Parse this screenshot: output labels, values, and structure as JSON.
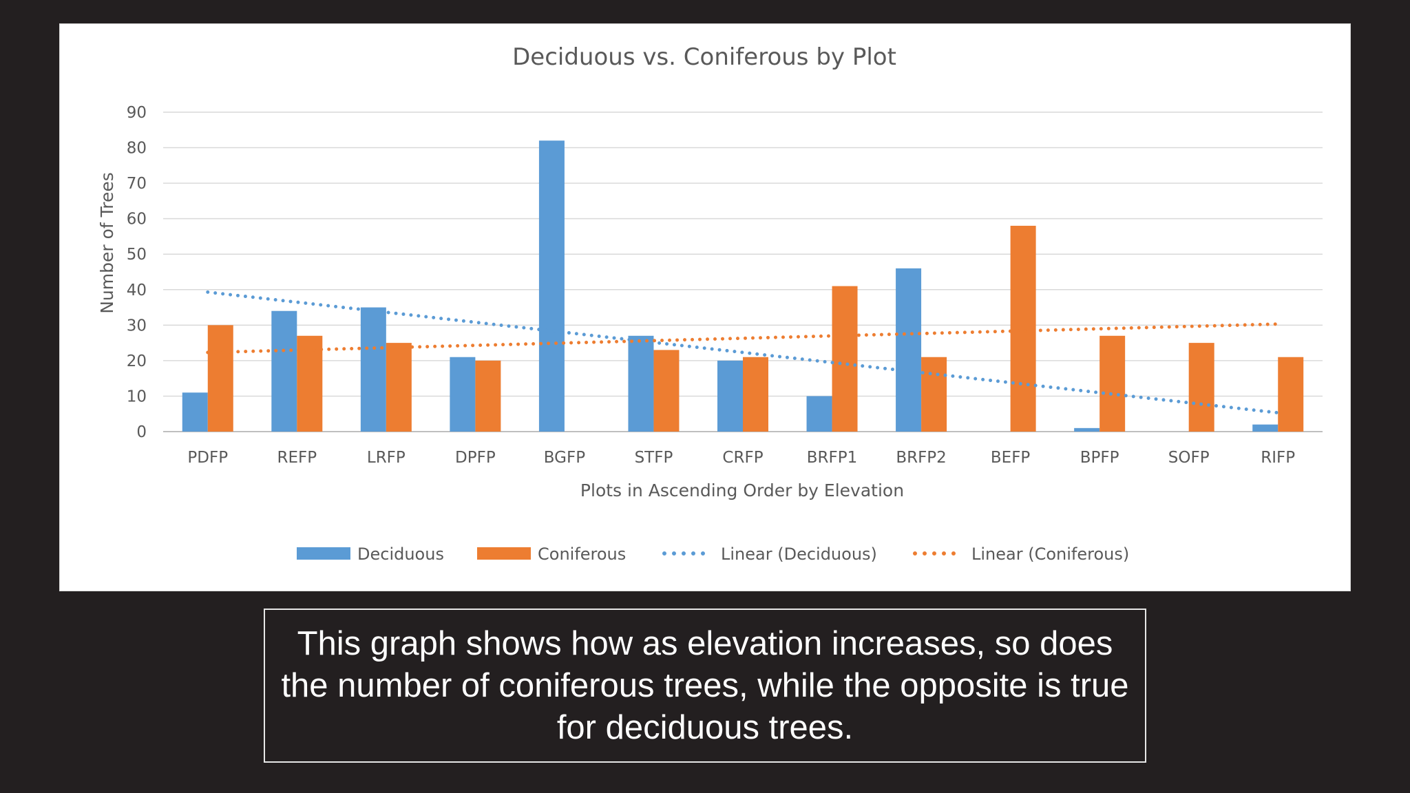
{
  "chart_data": {
    "type": "bar",
    "title": "Deciduous vs. Coniferous by Plot",
    "xlabel": "Plots in Ascending Order by Elevation",
    "ylabel": "Number of Trees",
    "ylim": [
      0,
      90
    ],
    "yticks": [
      0,
      10,
      20,
      30,
      40,
      50,
      60,
      70,
      80,
      90
    ],
    "grid": true,
    "legend_position": "bottom",
    "categories": [
      "PDFP",
      "REFP",
      "LRFP",
      "DPFP",
      "BGFP",
      "STFP",
      "CRFP",
      "BRFP1",
      "BRFP2",
      "BEFP",
      "BPFP",
      "SOFP",
      "RIFP"
    ],
    "series": [
      {
        "name": "Deciduous",
        "kind": "bar",
        "color": "#5b9bd5",
        "values": [
          11,
          34,
          35,
          21,
          82,
          27,
          20,
          10,
          46,
          0,
          1,
          0,
          2
        ]
      },
      {
        "name": "Coniferous",
        "kind": "bar",
        "color": "#ed7d31",
        "values": [
          30,
          27,
          25,
          20,
          0,
          23,
          21,
          41,
          21,
          58,
          27,
          25,
          21
        ]
      }
    ],
    "trendlines": [
      {
        "name": "Linear  (Deciduous)",
        "of": "Deciduous",
        "type": "linear",
        "color": "#5b9bd5",
        "start": 39.3,
        "end": 5.3
      },
      {
        "name": "Linear  (Coniferous)",
        "of": "Coniferous",
        "type": "linear",
        "color": "#ed7d31",
        "start": 22.3,
        "end": 30.3
      }
    ]
  },
  "caption": {
    "text": "This graph shows how as elevation increases, so does the number of coniferous trees, while the opposite is true for deciduous trees."
  }
}
